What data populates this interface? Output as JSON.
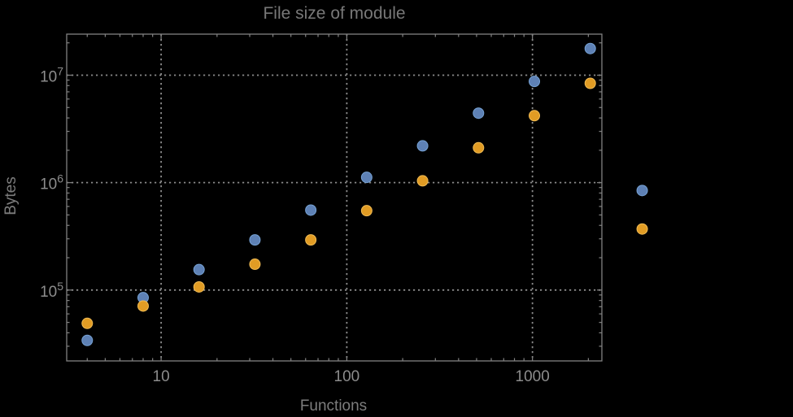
{
  "chart_data": {
    "type": "scatter",
    "title": "File size of module",
    "xlabel": "Functions",
    "ylabel": "Bytes",
    "x_scale": "log",
    "y_scale": "log",
    "x": [
      4,
      8,
      16,
      32,
      64,
      128,
      256,
      512,
      1024,
      2048,
      3900
    ],
    "series": [
      {
        "name": "series-blue",
        "color": "#5E81B5",
        "edge_color": "#76A2D4",
        "values": [
          34000,
          85000,
          155000,
          293000,
          555000,
          1120000,
          2200000,
          4430000,
          8750000,
          17700000,
          845000
        ]
      },
      {
        "name": "series-orange",
        "color": "#E19C24",
        "edge_color": "#EFBB55",
        "values": [
          49000,
          71000,
          107000,
          174000,
          293000,
          548000,
          1040000,
          2110000,
          4200000,
          8400000,
          370000
        ]
      }
    ],
    "x_ticks": [
      10,
      100,
      1000
    ],
    "x_tick_labels": [
      "10",
      "100",
      "1000"
    ],
    "y_ticks": [
      100000,
      1000000,
      10000000
    ],
    "y_tick_labels": [
      "10^5",
      "10^6",
      "10^7"
    ],
    "xlim": [
      3.1,
      2365
    ],
    "ylim": [
      21900,
      24100000
    ],
    "grid": "major-dotted",
    "legend": "none",
    "frame": true,
    "clipping": "points-drawn-outside-frame",
    "marker_diameter_px": 13,
    "colors": {
      "background": "#000000",
      "frame": "#828282",
      "grid": "#8a8a8a",
      "tick_label": "#8c8c8c",
      "title": "#787878",
      "axis_label": "#7d7d7d"
    }
  }
}
